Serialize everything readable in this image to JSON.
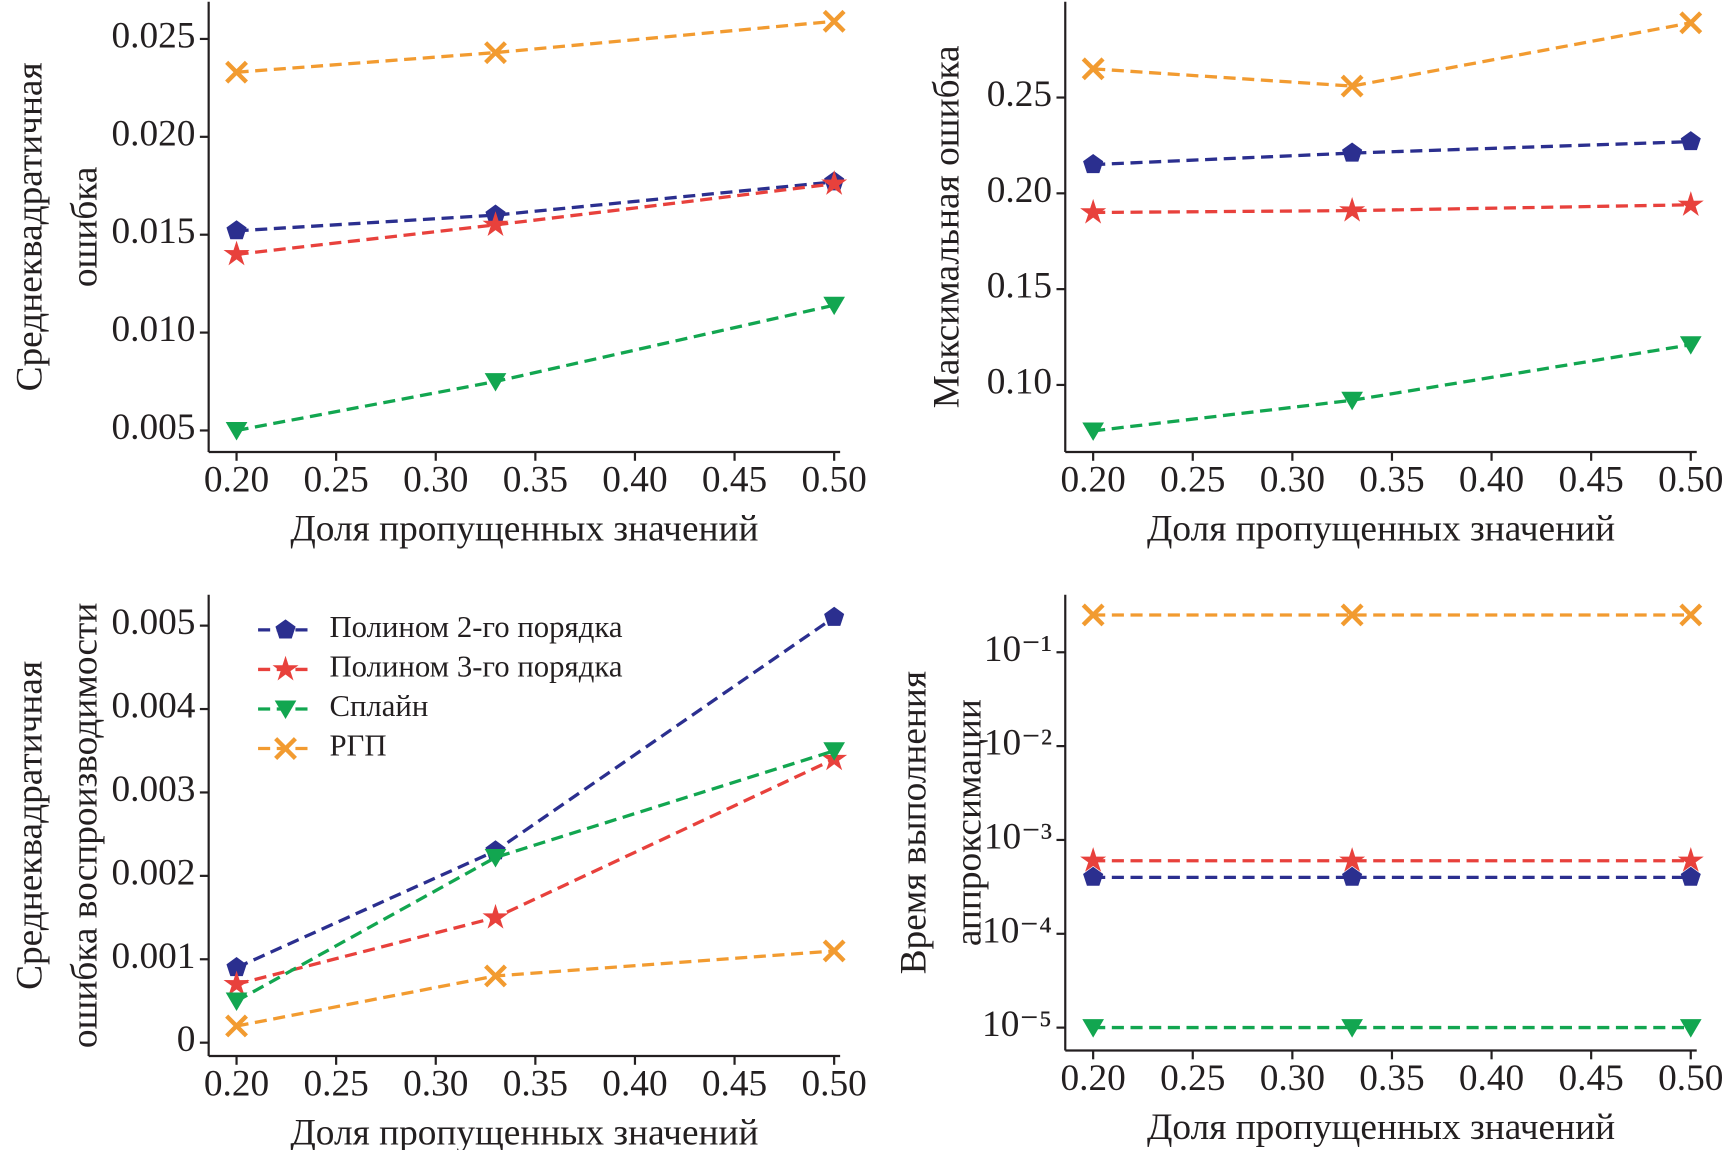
{
  "chart_data": [
    {
      "type": "line",
      "ylabel": [
        "Среднеквадратичная",
        "ошибка"
      ],
      "xlabel": "Доля пропущенных значений",
      "x": [
        0.2,
        0.33,
        0.5
      ],
      "series": [
        {
          "color": "#2b2f8f",
          "marker": "pentagon",
          "values": [
            0.0152,
            0.016,
            0.0177
          ]
        },
        {
          "color": "#e8413c",
          "marker": "star",
          "values": [
            0.014,
            0.0155,
            0.0176
          ]
        },
        {
          "color": "#12a650",
          "marker": "triangle_down",
          "values": [
            0.005,
            0.0075,
            0.0114
          ]
        },
        {
          "color": "#f29b30",
          "marker": "x",
          "values": [
            0.0233,
            0.0243,
            0.0259
          ]
        }
      ],
      "xlim": [
        0.186,
        0.503
      ],
      "xticks": [
        {
          "value": 0.2,
          "label": "0.20"
        },
        0.25,
        {
          "value": 0.3,
          "label": "0.30"
        },
        0.35,
        {
          "value": 0.4,
          "label": "0.40"
        },
        0.45,
        {
          "value": 0.5,
          "label": "0.50"
        }
      ],
      "ylim": [
        0.0039,
        0.0269
      ],
      "yticks": [
        0.005,
        {
          "value": 0.01,
          "label": "0.010"
        },
        0.015,
        {
          "value": 0.02,
          "label": "0.020"
        },
        0.025
      ]
    },
    {
      "type": "line",
      "ylabel": [
        "Максимальная ошибка"
      ],
      "xlabel": "Доля пропущенных значений",
      "x": [
        0.2,
        0.33,
        0.5
      ],
      "series": [
        {
          "color": "#2b2f8f",
          "marker": "pentagon",
          "values": [
            0.215,
            0.221,
            0.227
          ]
        },
        {
          "color": "#e8413c",
          "marker": "star",
          "values": [
            0.19,
            0.191,
            0.194
          ]
        },
        {
          "color": "#12a650",
          "marker": "triangle_down",
          "values": [
            0.076,
            0.092,
            0.121
          ]
        },
        {
          "color": "#f29b30",
          "marker": "x",
          "values": [
            0.265,
            0.256,
            0.289
          ]
        }
      ],
      "xlim": [
        0.186,
        0.503
      ],
      "xticks": [
        {
          "value": 0.2,
          "label": "0.20"
        },
        0.25,
        {
          "value": 0.3,
          "label": "0.30"
        },
        0.35,
        {
          "value": 0.4,
          "label": "0.40"
        },
        0.45,
        {
          "value": 0.5,
          "label": "0.50"
        }
      ],
      "ylim": [
        0.065,
        0.3
      ],
      "yticks": [
        {
          "value": 0.1,
          "label": "0.10"
        },
        0.15,
        {
          "value": 0.2,
          "label": "0.20"
        },
        0.25
      ]
    },
    {
      "type": "line",
      "ylabel": [
        "Среднеквадратичная",
        "ошибка воспроизводимости"
      ],
      "xlabel": "Доля пропущенных значений",
      "x": [
        0.2,
        0.33,
        0.5
      ],
      "legend": "upper left",
      "series": [
        {
          "name": "Полином 2-го порядка",
          "color": "#2b2f8f",
          "marker": "pentagon",
          "values": [
            0.0009,
            0.0023,
            0.0051
          ]
        },
        {
          "name": "Полином 3-го порядка",
          "color": "#e8413c",
          "marker": "star",
          "values": [
            0.0007,
            0.0015,
            0.0034
          ]
        },
        {
          "name": "Сплайн",
          "color": "#12a650",
          "marker": "triangle_down",
          "values": [
            0.0005,
            0.00222,
            0.0035
          ]
        },
        {
          "name": "РГП",
          "color": "#f29b30",
          "marker": "x",
          "values": [
            0.0002,
            0.0008,
            0.0011
          ]
        }
      ],
      "xlim": [
        0.186,
        0.503
      ],
      "xticks": [
        {
          "value": 0.2,
          "label": "0.20"
        },
        0.25,
        {
          "value": 0.3,
          "label": "0.30"
        },
        0.35,
        {
          "value": 0.4,
          "label": "0.40"
        },
        0.45,
        {
          "value": 0.5,
          "label": "0.50"
        }
      ],
      "ylim": [
        -0.00016,
        0.00537
      ],
      "yticks": [
        0,
        0.001,
        0.002,
        0.003,
        0.004,
        0.005
      ]
    },
    {
      "type": "line",
      "ylabel": [
        "Время выполнения",
        "аппроксимации"
      ],
      "xlabel": "Доля пропущенных значений",
      "x": [
        0.2,
        0.33,
        0.5
      ],
      "yscale": "log",
      "series": [
        {
          "color": "#2b2f8f",
          "marker": "pentagon",
          "values": [
            0.0004,
            0.0004,
            0.0004
          ]
        },
        {
          "color": "#e8413c",
          "marker": "star",
          "values": [
            0.0006,
            0.0006,
            0.0006
          ]
        },
        {
          "color": "#12a650",
          "marker": "triangle_down",
          "values": [
            1e-05,
            1e-05,
            1e-05
          ]
        },
        {
          "color": "#f29b30",
          "marker": "x",
          "values": [
            0.25,
            0.25,
            0.25
          ]
        }
      ],
      "xlim": [
        0.186,
        0.503
      ],
      "xticks": [
        {
          "value": 0.2,
          "label": "0.20"
        },
        0.25,
        {
          "value": 0.3,
          "label": "0.30"
        },
        0.35,
        {
          "value": 0.4,
          "label": "0.40"
        },
        0.45,
        {
          "value": 0.5,
          "label": "0.50"
        }
      ],
      "ylim": [
        5.7e-06,
        0.41
      ],
      "yticks": [
        {
          "value": 1e-05,
          "label": "10⁻⁵"
        },
        {
          "value": 0.0001,
          "label": "10⁻⁴"
        },
        {
          "value": 0.001,
          "label": "10⁻³"
        },
        {
          "value": 0.01,
          "label": "10⁻²"
        },
        {
          "value": 0.1,
          "label": "10⁻¹"
        }
      ]
    }
  ]
}
